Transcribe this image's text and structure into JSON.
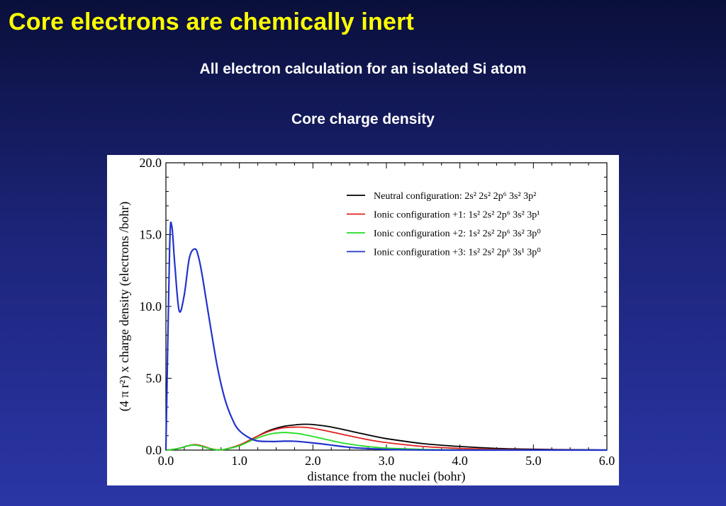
{
  "slide": {
    "title": "Core electrons are chemically inert",
    "subtitle": "All electron calculation for an isolated Si atom",
    "caption": "Core charge density"
  },
  "chart_data": {
    "type": "line",
    "xlabel": "distance from the nuclei (bohr)",
    "ylabel": "(4 π r²) x charge density (electrons /bohr)",
    "xlim": [
      0.0,
      6.0
    ],
    "ylim": [
      0.0,
      20.0
    ],
    "xticks": [
      "0.0",
      "1.0",
      "2.0",
      "3.0",
      "4.0",
      "5.0",
      "6.0"
    ],
    "yticks": [
      "0.0",
      "5.0",
      "10.0",
      "15.0",
      "20.0"
    ],
    "legend_position": "top-right",
    "series": [
      {
        "name": "Neutral configuration: 2s² 2s² 2p⁶ 3s² 3p²",
        "color": "#000000",
        "x": [
          0.0,
          0.1,
          0.2,
          0.3,
          0.4,
          0.5,
          0.6,
          0.7,
          0.8,
          1.0,
          1.2,
          1.4,
          1.6,
          1.8,
          1.9,
          2.0,
          2.2,
          2.4,
          2.6,
          2.8,
          3.0,
          3.5,
          4.0,
          4.5,
          5.0,
          5.5,
          6.0
        ],
        "y": [
          0.0,
          0.05,
          0.15,
          0.3,
          0.35,
          0.25,
          0.1,
          0.02,
          0.05,
          0.35,
          0.85,
          1.35,
          1.65,
          1.78,
          1.8,
          1.78,
          1.65,
          1.45,
          1.22,
          1.0,
          0.8,
          0.45,
          0.25,
          0.12,
          0.06,
          0.03,
          0.01
        ]
      },
      {
        "name": "Ionic configuration +1: 1s² 2s² 2p⁶ 3s² 3p¹",
        "color": "#e02020",
        "x": [
          0.0,
          0.1,
          0.2,
          0.3,
          0.4,
          0.5,
          0.6,
          0.7,
          0.8,
          1.0,
          1.2,
          1.4,
          1.6,
          1.8,
          1.9,
          2.0,
          2.2,
          2.4,
          2.6,
          2.8,
          3.0,
          3.5,
          4.0,
          4.5,
          5.0,
          5.5,
          6.0
        ],
        "y": [
          0.0,
          0.05,
          0.15,
          0.3,
          0.38,
          0.28,
          0.12,
          0.02,
          0.05,
          0.35,
          0.85,
          1.3,
          1.55,
          1.6,
          1.58,
          1.52,
          1.32,
          1.1,
          0.88,
          0.68,
          0.52,
          0.25,
          0.12,
          0.05,
          0.02,
          0.01,
          0.0
        ]
      },
      {
        "name": "Ionic configuration +2: 1s² 2s² 2p⁶ 3s² 3p⁰",
        "color": "#22dd22",
        "x": [
          0.0,
          0.1,
          0.2,
          0.3,
          0.4,
          0.5,
          0.6,
          0.7,
          0.8,
          1.0,
          1.2,
          1.4,
          1.6,
          1.8,
          1.9,
          2.0,
          2.2,
          2.4,
          2.6,
          2.8,
          3.0,
          3.5,
          4.0,
          4.5,
          5.0,
          5.5,
          6.0
        ],
        "y": [
          0.0,
          0.05,
          0.15,
          0.3,
          0.35,
          0.25,
          0.1,
          0.02,
          0.05,
          0.3,
          0.75,
          1.1,
          1.22,
          1.15,
          1.05,
          0.95,
          0.72,
          0.5,
          0.34,
          0.22,
          0.14,
          0.05,
          0.02,
          0.01,
          0.0,
          0.0,
          0.0
        ]
      },
      {
        "name": "Ionic configuration +3: 1s² 2s² 2p⁶ 3s¹ 3p⁰",
        "color": "#2233cc",
        "x": [
          0.0,
          0.05,
          0.08,
          0.12,
          0.18,
          0.25,
          0.32,
          0.4,
          0.45,
          0.5,
          0.6,
          0.7,
          0.8,
          0.9,
          1.0,
          1.2,
          1.4,
          1.6,
          1.7,
          1.8,
          2.0,
          2.2,
          2.4,
          2.6,
          3.0,
          3.5,
          4.0,
          5.0,
          6.0
        ],
        "y": [
          0.0,
          14.0,
          15.6,
          13.0,
          9.7,
          10.8,
          13.4,
          14.0,
          13.3,
          12.0,
          8.8,
          5.8,
          3.6,
          2.2,
          1.35,
          0.7,
          0.6,
          0.62,
          0.62,
          0.6,
          0.5,
          0.38,
          0.25,
          0.15,
          0.05,
          0.01,
          0.0,
          0.0,
          0.0
        ]
      }
    ]
  }
}
